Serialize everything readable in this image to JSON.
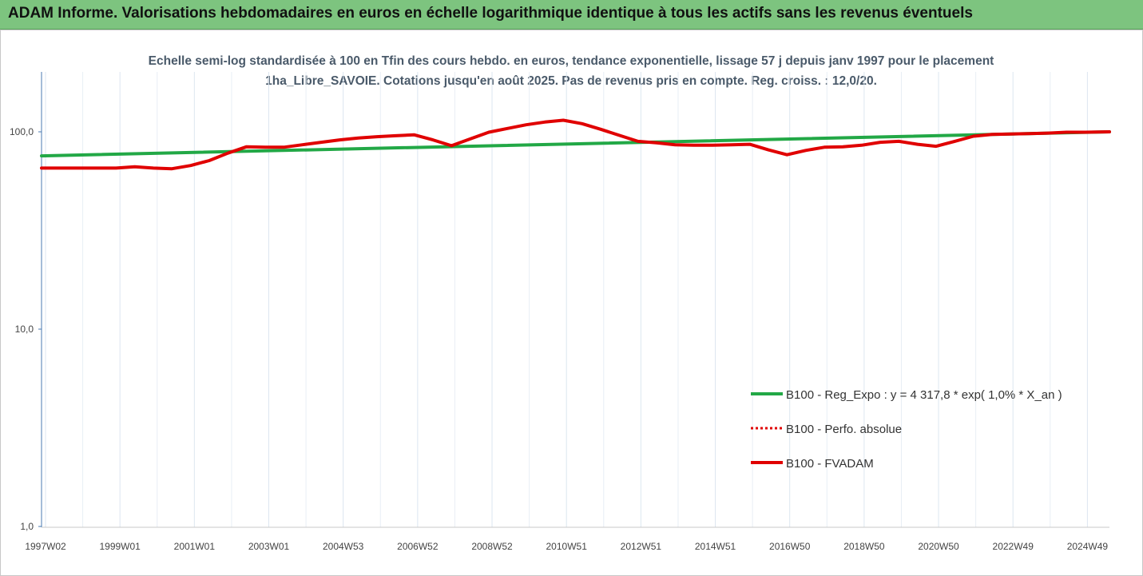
{
  "banner": {
    "title": "ADAM Informe. Valorisations hebdomadaires en euros en échelle logarithmique identique à tous les actifs sans les revenus éventuels",
    "color": "#7dc47f",
    "corner_color": "#f0b400"
  },
  "chart_data": {
    "type": "line",
    "title": "Echelle semi-log standardisée à 100 en Tfin des cours hebdo. en euros, tendance exponentielle, lissage 57 j depuis janv 1997 pour le placement 1ha_Libre_SAVOIE. Cotations jusqu'en août 2025. Pas de revenus pris en compte. Reg. croiss. : 12,0/20.",
    "yscale": "log",
    "ylim": [
      1,
      200
    ],
    "yticks": [
      "1,0",
      "10,0",
      "100,0"
    ],
    "yticks_values": [
      1,
      10,
      100
    ],
    "xlim": [
      1997.0,
      2025.65
    ],
    "xticks": [
      "1997W02",
      "1999W01",
      "2001W01",
      "2003W01",
      "2004W53",
      "2006W52",
      "2008W52",
      "2010W51",
      "2012W51",
      "2014W51",
      "2016W50",
      "2018W50",
      "2020W50",
      "2022W49",
      "2024W49"
    ],
    "grid": "vertical",
    "legend_position": "right",
    "series": [
      {
        "name": "B100 - Reg_Expo : y = 4 317,8 * exp( 1,0% *  X_an )",
        "color": "#22a846",
        "style": "solid",
        "x": [
          1997.0,
          2025.65
        ],
        "y": [
          75.5,
          100.0
        ]
      },
      {
        "name": "B100 - Perfo. absolue",
        "color": "#e00000",
        "style": "dotted",
        "x": [],
        "y": []
      },
      {
        "name": "B100 - FVADAM",
        "color": "#e00000",
        "style": "solid",
        "x": [
          1997.0,
          1999.0,
          1999.5,
          2000.0,
          2000.5,
          2001.0,
          2001.5,
          2002.0,
          2002.5,
          2003.0,
          2003.5,
          2004.0,
          2004.5,
          2005.0,
          2005.5,
          2006.0,
          2006.5,
          2007.0,
          2007.5,
          2008.0,
          2008.5,
          2009.0,
          2009.5,
          2010.0,
          2010.5,
          2011.0,
          2011.5,
          2012.0,
          2012.5,
          2013.0,
          2013.5,
          2014.0,
          2014.5,
          2015.0,
          2015.5,
          2016.0,
          2016.5,
          2017.0,
          2017.5,
          2018.0,
          2018.5,
          2019.0,
          2019.5,
          2020.0,
          2020.5,
          2021.0,
          2021.5,
          2022.0,
          2022.5,
          2023.0,
          2023.5,
          2024.0,
          2024.5,
          2025.0,
          2025.65
        ],
        "y": [
          65.5,
          65.5,
          66.5,
          65.5,
          65.0,
          67.5,
          71.5,
          78.0,
          84.0,
          83.5,
          83.5,
          86.0,
          88.5,
          91.0,
          93.0,
          94.5,
          95.5,
          96.5,
          91.0,
          85.0,
          92.0,
          99.5,
          104.0,
          108.5,
          112.0,
          114.5,
          110.0,
          103.0,
          96.0,
          89.5,
          88.0,
          86.0,
          85.5,
          85.5,
          86.0,
          86.5,
          81.0,
          76.5,
          80.5,
          83.5,
          84.0,
          85.5,
          88.5,
          89.5,
          86.5,
          84.5,
          89.5,
          95.0,
          97.0,
          97.5,
          98.0,
          98.5,
          99.5,
          99.5,
          100.0
        ]
      }
    ]
  }
}
